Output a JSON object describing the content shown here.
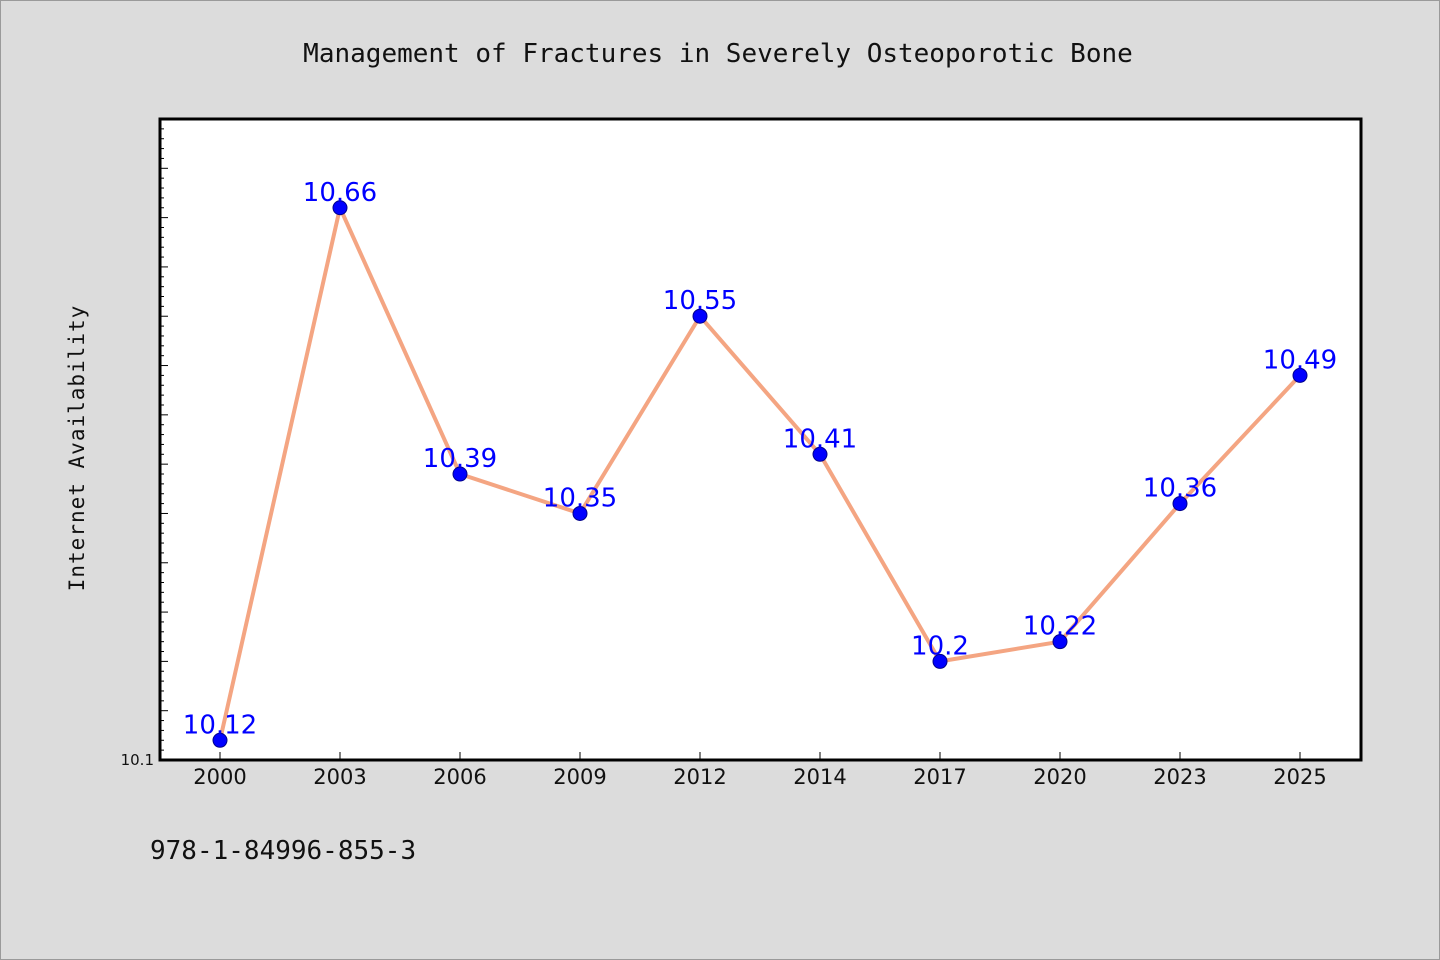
{
  "chart_data": {
    "type": "line",
    "title": "Management of Fractures in Severely Osteoporotic Bone",
    "xlabel": "",
    "ylabel": "Internet Availability",
    "categories": [
      "2000",
      "2003",
      "2006",
      "2009",
      "2012",
      "2014",
      "2017",
      "2020",
      "2023",
      "2025"
    ],
    "values": [
      10.12,
      10.66,
      10.39,
      10.35,
      10.55,
      10.41,
      10.2,
      10.22,
      10.36,
      10.49
    ],
    "data_labels": [
      "10.12",
      "10.66",
      "10.39",
      "10.35",
      "10.55",
      "10.41",
      "10.2",
      "10.22",
      "10.36",
      "10.49"
    ],
    "y_tick_labels": [
      "10.1"
    ],
    "ylim": [
      10.1,
      10.75
    ],
    "grid": false,
    "line_color": "#f4a582",
    "marker_color": "#0000ff",
    "label_color": "#0000ff"
  },
  "footer": {
    "isbn": "978-1-84996-855-3"
  }
}
